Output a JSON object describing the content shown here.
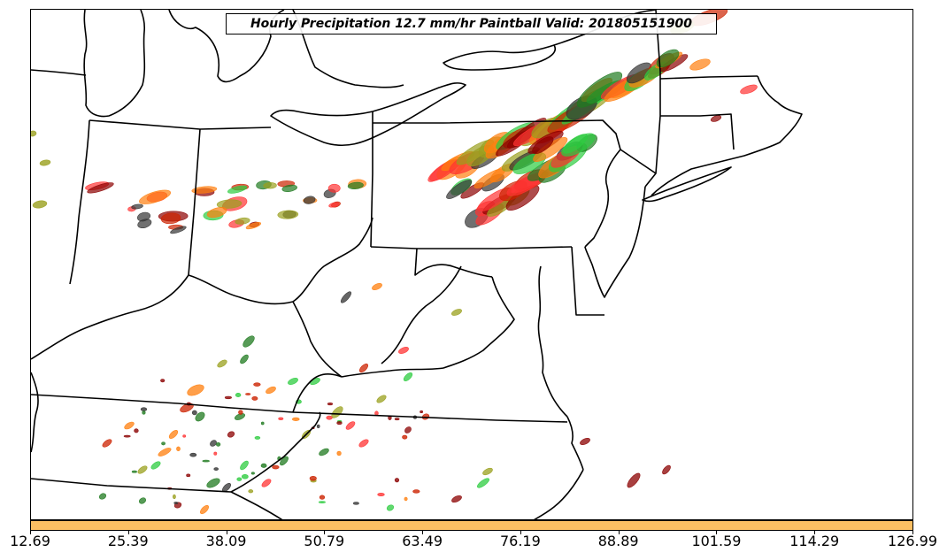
{
  "title": "Hourly Precipitation 12.7 mm/hr Paintball Valid: 201805151900",
  "colorbar": {
    "color": "#fbbf63",
    "tick_labels": [
      "12.69",
      "25.39",
      "38.09",
      "50.79",
      "63.49",
      "76.19",
      "88.89",
      "101.59",
      "114.29",
      "126.99"
    ]
  },
  "member_colors": [
    "#ff3333",
    "#ff7f0e",
    "#2ecc40",
    "#8b0000",
    "#333333",
    "#9aa01e",
    "#1f7a1f",
    "#cc2200"
  ]
}
